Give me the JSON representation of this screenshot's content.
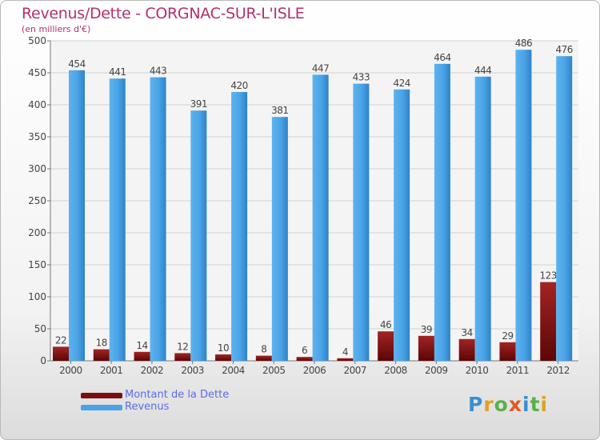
{
  "title": "Revenus/Dette - CORGNAC-SUR-L'ISLE",
  "subtitle": "(en milliers d'€)",
  "legend": {
    "debt_label": "Montant de la Dette",
    "revenue_label": "Revenus"
  },
  "logo_text": "Proxiti",
  "colors": {
    "debt": "#7a0f10",
    "revenue": "#4aa3e6",
    "title": "#b3306c",
    "legend_text": "#5b6de8"
  },
  "chart_data": {
    "type": "bar",
    "categories": [
      "2000",
      "2001",
      "2002",
      "2003",
      "2004",
      "2005",
      "2006",
      "2007",
      "2008",
      "2009",
      "2010",
      "2011",
      "2012"
    ],
    "series": [
      {
        "name": "Montant de la Dette",
        "values": [
          22,
          18,
          14,
          12,
          10,
          8,
          6,
          4,
          46,
          39,
          34,
          29,
          123
        ]
      },
      {
        "name": "Revenus",
        "values": [
          454,
          441,
          443,
          391,
          420,
          381,
          447,
          433,
          424,
          464,
          444,
          486,
          476
        ]
      }
    ],
    "title": "Revenus/Dette - CORGNAC-SUR-L'ISLE",
    "ylabel": "(en milliers d'€)",
    "ylim": [
      0,
      500
    ],
    "yticks": [
      0,
      50,
      100,
      150,
      200,
      250,
      300,
      350,
      400,
      450,
      500
    ],
    "grid": true,
    "legend_position": "bottom-left"
  }
}
